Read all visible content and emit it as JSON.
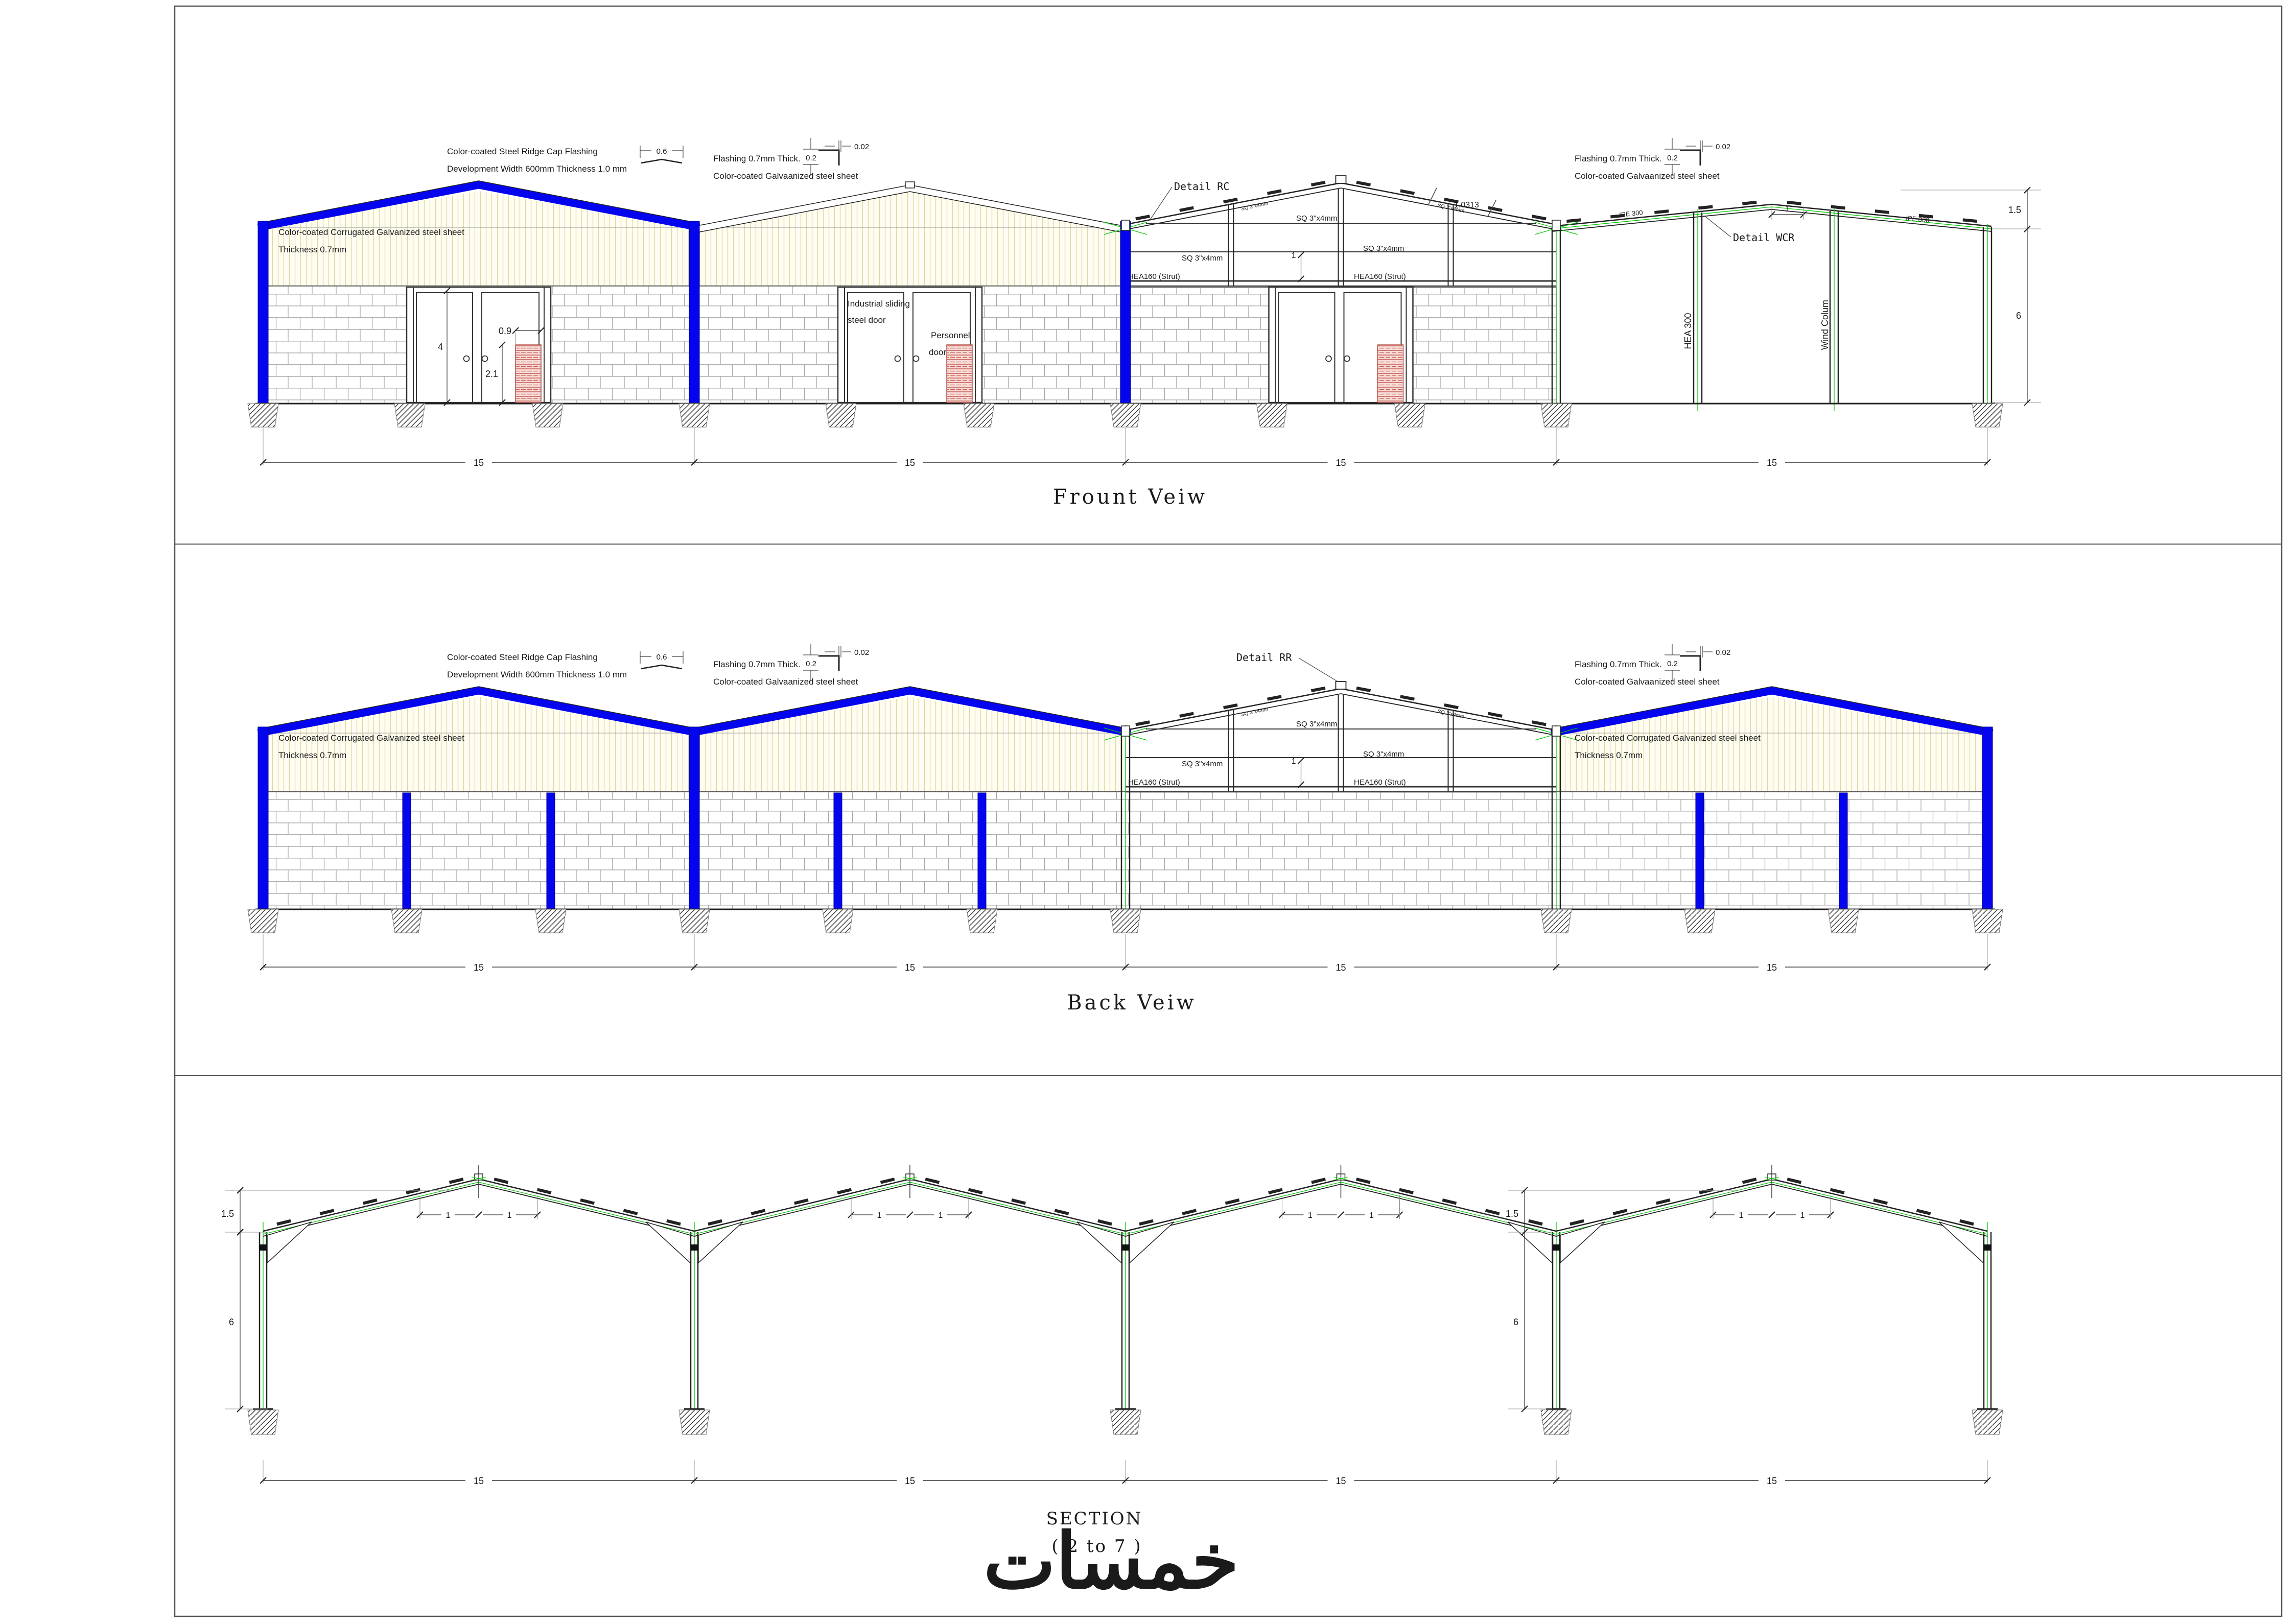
{
  "colors": {
    "blue": "#0404ee",
    "cyan": "#2fe8f2",
    "green": "#00c800",
    "red_line": "#c9605a",
    "red_bg": "#f7dcd7",
    "cream_line": "#ddd9a2",
    "brick_line": "#a6a6a6",
    "watermark": "#e5e5e5",
    "line": "#2a2a2a"
  },
  "shared": {
    "ridge_cap_note_1": "Color-coated Steel Ridge Cap Flashing",
    "ridge_cap_note_2": "Development Width 600mm Thickness 1.0 mm",
    "ridge_cap_dim": "0.6",
    "flashing_note_1": "Flashing 0.7mm Thick.",
    "flashing_note_2": "Color-coated Galvaanized steel sheet",
    "flashing_dim_v": "0.2",
    "flashing_dim_h": "0.02",
    "wall_note_1": "Color-coated Corrugated Galvanized steel sheet",
    "wall_note_2": "Thickness 0.7mm",
    "sq_label": "SQ 3\"x4mm",
    "strut_label": "HEA160 (Strut)",
    "bay_dim": "15",
    "dim_one": "1",
    "rise_dim": "1.5",
    "height_dim": "6"
  },
  "front": {
    "title": "Frount Veiw",
    "detail_rc": "Detail RC",
    "detail_wcr": "Detail WCR",
    "purlin_spacing": "1.0313",
    "hea300": "HEA 300",
    "wind_column": "Wind Colum",
    "ipe300": "IPE 300",
    "industrial_door_1": "Industrial sliding",
    "industrial_door_2": "steel door",
    "personnel_door_1": "Personnel",
    "personnel_door_2": "door",
    "door_height_dim": "4",
    "pdoor_width_dim": "0.9",
    "pdoor_height_dim": "2.1"
  },
  "back": {
    "title": "Back Veiw",
    "detail_rr": "Detail RR"
  },
  "section": {
    "title_1": "SECTION",
    "title_2": "( 2 to 7 )"
  },
  "watermark": "خمسات"
}
